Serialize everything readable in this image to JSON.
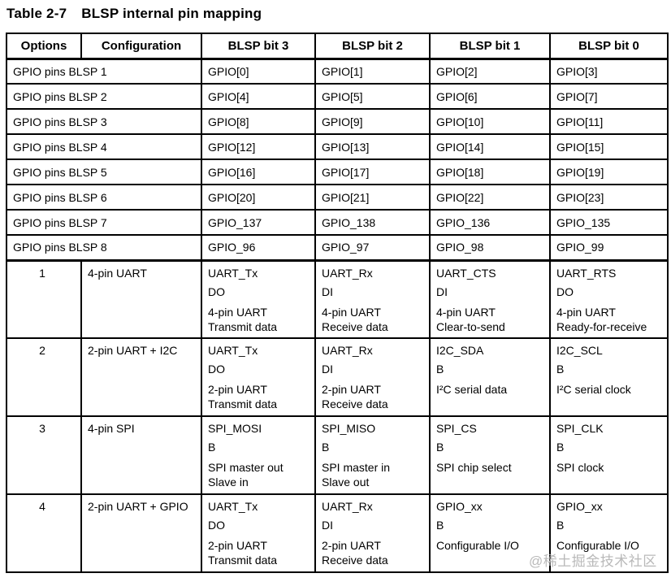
{
  "title": {
    "label": "Table 2-7",
    "text": "BLSP internal pin mapping"
  },
  "table": {
    "headers": [
      "Options",
      "Configuration",
      "BLSP bit 3",
      "BLSP bit 2",
      "BLSP bit 1",
      "BLSP bit 0"
    ],
    "gpio_rows": [
      {
        "label": "GPIO pins BLSP 1",
        "pins": [
          "GPIO[0]",
          "GPIO[1]",
          "GPIO[2]",
          "GPIO[3]"
        ]
      },
      {
        "label": "GPIO pins BLSP 2",
        "pins": [
          "GPIO[4]",
          "GPIO[5]",
          "GPIO[6]",
          "GPIO[7]"
        ]
      },
      {
        "label": "GPIO pins BLSP 3",
        "pins": [
          "GPIO[8]",
          "GPIO[9]",
          "GPIO[10]",
          "GPIO[11]"
        ]
      },
      {
        "label": "GPIO pins BLSP 4",
        "pins": [
          "GPIO[12]",
          "GPIO[13]",
          "GPIO[14]",
          "GPIO[15]"
        ]
      },
      {
        "label": "GPIO pins BLSP 5",
        "pins": [
          "GPIO[16]",
          "GPIO[17]",
          "GPIO[18]",
          "GPIO[19]"
        ]
      },
      {
        "label": "GPIO pins BLSP 6",
        "pins": [
          "GPIO[20]",
          "GPIO[21]",
          "GPIO[22]",
          "GPIO[23]"
        ]
      },
      {
        "label": "GPIO pins BLSP 7",
        "pins": [
          "GPIO_137",
          "GPIO_138",
          "GPIO_136",
          "GPIO_135"
        ]
      },
      {
        "label": "GPIO pins BLSP 8",
        "pins": [
          "GPIO_96",
          "GPIO_97",
          "GPIO_98",
          "GPIO_99"
        ]
      }
    ],
    "option_rows": [
      {
        "option": "1",
        "configuration": "4-pin UART",
        "cells": [
          {
            "pin": "UART_Tx",
            "dir": "DO",
            "desc": "4-pin UART\nTransmit data"
          },
          {
            "pin": "UART_Rx",
            "dir": "DI",
            "desc": "4-pin UART\nReceive data"
          },
          {
            "pin": "UART_CTS",
            "dir": "DI",
            "desc": "4-pin UART\nClear-to-send"
          },
          {
            "pin": "UART_RTS",
            "dir": "DO",
            "desc": "4-pin UART\nReady-for-receive"
          }
        ]
      },
      {
        "option": "2",
        "configuration": "2-pin UART + I2C",
        "cells": [
          {
            "pin": "UART_Tx",
            "dir": "DO",
            "desc": "2-pin UART\nTransmit data"
          },
          {
            "pin": "UART_Rx",
            "dir": "DI",
            "desc": "2-pin UART\nReceive data"
          },
          {
            "pin": "I2C_SDA",
            "dir": "B",
            "desc": "I²C serial data"
          },
          {
            "pin": "I2C_SCL",
            "dir": "B",
            "desc": "I²C serial clock"
          }
        ]
      },
      {
        "option": "3",
        "configuration": "4-pin SPI",
        "cells": [
          {
            "pin": "SPI_MOSI",
            "dir": "B",
            "desc": "SPI master out\nSlave in"
          },
          {
            "pin": "SPI_MISO",
            "dir": "B",
            "desc": "SPI master in\nSlave out"
          },
          {
            "pin": "SPI_CS",
            "dir": "B",
            "desc": "SPI chip select"
          },
          {
            "pin": "SPI_CLK",
            "dir": "B",
            "desc": "SPI clock"
          }
        ]
      },
      {
        "option": "4",
        "configuration": "2-pin UART + GPIO",
        "cells": [
          {
            "pin": "UART_Tx",
            "dir": "DO",
            "desc": "2-pin UART\nTransmit data"
          },
          {
            "pin": "UART_Rx",
            "dir": "DI",
            "desc": "2-pin UART\nReceive data"
          },
          {
            "pin": "GPIO_xx",
            "dir": "B",
            "desc": "Configurable I/O"
          },
          {
            "pin": "GPIO_xx",
            "dir": "B",
            "desc": "Configurable I/O"
          }
        ]
      }
    ]
  },
  "watermark": "@稀土掘金技术社区"
}
